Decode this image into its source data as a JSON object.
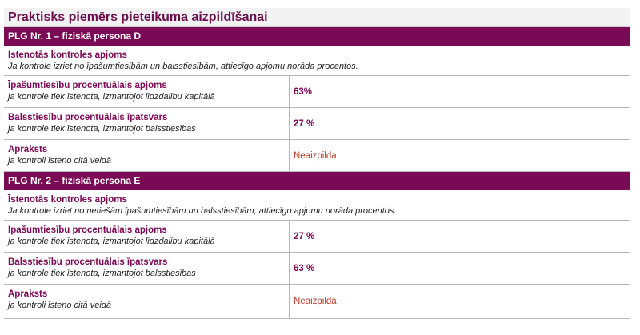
{
  "page_title": "Praktisks piemērs pieteikuma aizpildīšanai",
  "sections": [
    {
      "header": "PLG Nr. 1 – fiziskā persona D",
      "scope_title": "Īstenotās kontroles apjoms",
      "scope_desc": "Ja kontrole izriet no īpašumtiesībām un balsstiesībām, attiecīgo apjomu norāda procentos.",
      "rows": [
        {
          "title": "Īpašumtiesību procentuālais apjoms",
          "desc": "ja kontrole tiek īstenota, izmantojot līdzdalību kapitālā",
          "value": "63%"
        },
        {
          "title": "Balsstiesību procentuālais īpatsvars",
          "desc": "ja kontrole tiek īstenota, izmantojot balsstiesības",
          "value": "27 %"
        },
        {
          "title": "Apraksts",
          "desc": "ja kontroli īsteno citā veidā",
          "value": "Neaizpilda"
        }
      ]
    },
    {
      "header": "PLG Nr. 2 – fiziskā persona E",
      "scope_title": "Īstenotās kontroles apjoms",
      "scope_desc": "Ja kontrole izriet no netiešām īpašumtiesībām un balsstiesībām, attiecīgo apjomu norāda procentos.",
      "rows": [
        {
          "title": "Īpašumtiesību procentuālais apjoms",
          "desc": "ja kontrole tiek īstenota, izmantojot līdzdalību kapitālā",
          "value": "27 %"
        },
        {
          "title": "Balsstiesību procentuālais īpatsvars",
          "desc": "ja kontrole tiek īstenota, izmantojot balsstiesības",
          "value": "63 %"
        },
        {
          "title": "Apraksts",
          "desc": "ja kontroli īsteno citā veidā",
          "value": "Neaizpilda"
        }
      ]
    }
  ],
  "colors": {
    "brand": "#7a0a55",
    "title_bg": "#f2f2f2",
    "negative_value": "#c0392b"
  }
}
